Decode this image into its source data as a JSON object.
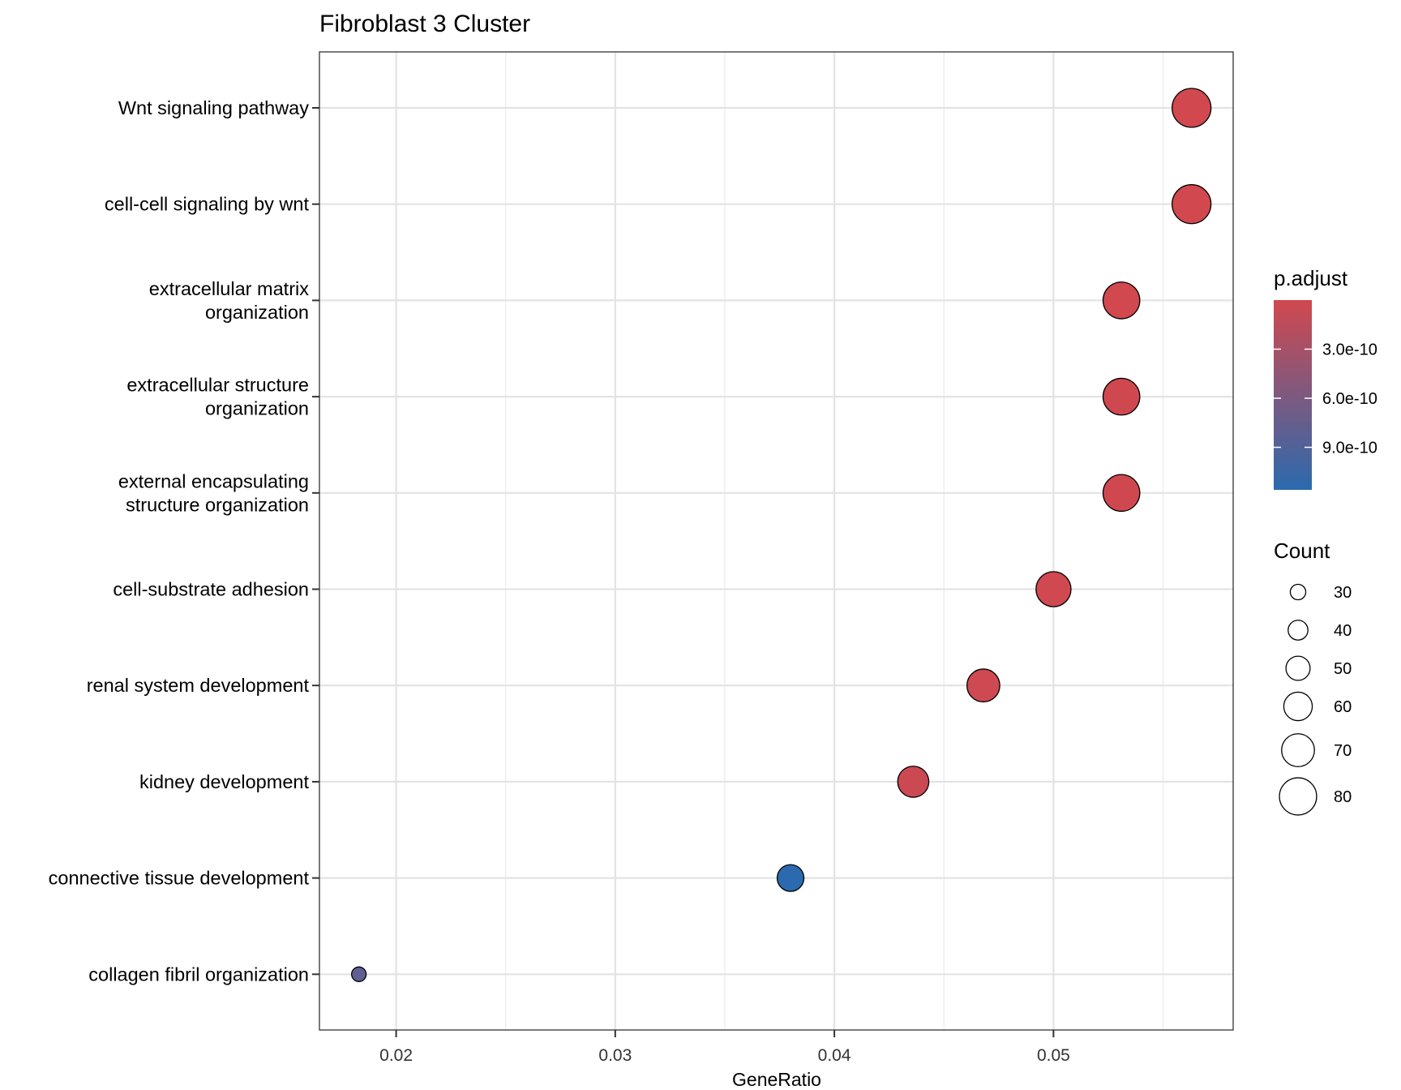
{
  "chart_data": {
    "type": "scatter",
    "title": "Fibroblast 3 Cluster",
    "xlabel": "GeneRatio",
    "ylabel": "",
    "xlim": [
      0.0165,
      0.0582
    ],
    "x_ticks": [
      "0.02",
      "0.03",
      "0.04",
      "0.05"
    ],
    "x_tick_values": [
      0.02,
      0.03,
      0.04,
      0.05
    ],
    "grid": true,
    "legend_position": "right",
    "categories": [
      [
        "Wnt signaling pathway"
      ],
      [
        "cell-cell signaling by wnt"
      ],
      [
        "extracellular matrix",
        "organization"
      ],
      [
        "extracellular structure",
        "organization"
      ],
      [
        "external encapsulating",
        "structure organization"
      ],
      [
        "cell-substrate adhesion"
      ],
      [
        "renal system development"
      ],
      [
        "kidney development"
      ],
      [
        "connective tissue development"
      ],
      [
        "collagen fibril organization"
      ]
    ],
    "series": [
      {
        "gene_ratio": [
          0.0563,
          0.0563,
          0.0531,
          0.0531,
          0.0531,
          0.05,
          0.0468,
          0.0436,
          0.038,
          0.0183
        ],
        "count": [
          84,
          84,
          79,
          79,
          79,
          75,
          70,
          66,
          56,
          28
        ],
        "p_adjust": [
          1e-12,
          1.5e-12,
          3e-12,
          3.5e-12,
          4e-12,
          1e-11,
          2e-11,
          5e-11,
          1.16e-09,
          8e-10
        ]
      }
    ],
    "color_legend": {
      "title": "p.adjust",
      "ticks": [
        "3.0e-10",
        "6.0e-10",
        "9.0e-10"
      ],
      "tick_values": [
        3e-10,
        6e-10,
        9e-10
      ],
      "range": [
        0,
        1.16e-09
      ],
      "low_color": "#D1484F",
      "high_color": "#2B6AAE"
    },
    "size_legend": {
      "title": "Count",
      "values": [
        30,
        40,
        50,
        60,
        70,
        80
      ],
      "labels": [
        "30",
        "40",
        "50",
        "60",
        "70",
        "80"
      ]
    }
  }
}
